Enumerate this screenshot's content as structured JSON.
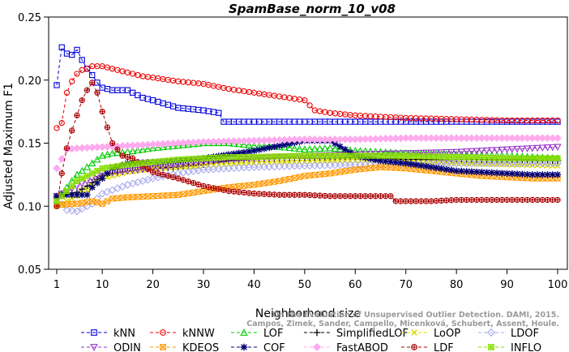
{
  "chart_data": {
    "type": "line",
    "title": "SpamBase_norm_10_v08",
    "xlabel": "Neighborhood size",
    "ylabel": "Adjusted Maximum F1",
    "xlim": [
      1,
      100
    ],
    "ylim": [
      0.05,
      0.25
    ],
    "x_ticks": [
      1,
      10,
      20,
      30,
      40,
      50,
      60,
      70,
      80,
      90,
      100
    ],
    "y_ticks": [
      0.05,
      0.1,
      0.15,
      0.2,
      0.25
    ],
    "grid": false,
    "legend_position": "bottom",
    "watermark": "Campos, Zimek, Sander, Campello, Micenková, Schubert, Assent, Houle. On the Evaluation of Unsupervised Outlier Detection. DAMI, 2015.",
    "series": [
      {
        "name": "kNN",
        "color": "#0000dd",
        "marker": "square",
        "points": [
          [
            1,
            0.196
          ],
          [
            2,
            0.226
          ],
          [
            3,
            0.221
          ],
          [
            4,
            0.22
          ],
          [
            5,
            0.224
          ],
          [
            6,
            0.216
          ],
          [
            7,
            0.209
          ],
          [
            8,
            0.204
          ],
          [
            9,
            0.198
          ],
          [
            10,
            0.194
          ],
          [
            12,
            0.192
          ],
          [
            15,
            0.192
          ],
          [
            18,
            0.186
          ],
          [
            20,
            0.184
          ],
          [
            25,
            0.178
          ],
          [
            30,
            0.176
          ],
          [
            33,
            0.174
          ],
          [
            34,
            0.167
          ],
          [
            40,
            0.167
          ],
          [
            45,
            0.167
          ],
          [
            50,
            0.167
          ],
          [
            55,
            0.167
          ],
          [
            60,
            0.167
          ],
          [
            70,
            0.167
          ],
          [
            80,
            0.167
          ],
          [
            90,
            0.167
          ],
          [
            100,
            0.167
          ]
        ]
      },
      {
        "name": "kNNW",
        "color": "#ee0000",
        "marker": "circle",
        "points": [
          [
            1,
            0.162
          ],
          [
            2,
            0.166
          ],
          [
            3,
            0.19
          ],
          [
            4,
            0.199
          ],
          [
            5,
            0.205
          ],
          [
            6,
            0.208
          ],
          [
            7,
            0.209
          ],
          [
            8,
            0.211
          ],
          [
            9,
            0.211
          ],
          [
            10,
            0.211
          ],
          [
            12,
            0.209
          ],
          [
            15,
            0.206
          ],
          [
            18,
            0.203
          ],
          [
            20,
            0.202
          ],
          [
            25,
            0.199
          ],
          [
            30,
            0.197
          ],
          [
            35,
            0.193
          ],
          [
            40,
            0.19
          ],
          [
            45,
            0.187
          ],
          [
            50,
            0.184
          ],
          [
            52,
            0.176
          ],
          [
            55,
            0.174
          ],
          [
            60,
            0.172
          ],
          [
            70,
            0.17
          ],
          [
            80,
            0.169
          ],
          [
            90,
            0.168
          ],
          [
            100,
            0.168
          ]
        ]
      },
      {
        "name": "LOF",
        "color": "#00cc00",
        "marker": "triangle",
        "points": [
          [
            1,
            0.105
          ],
          [
            5,
            0.125
          ],
          [
            10,
            0.14
          ],
          [
            12,
            0.142
          ],
          [
            15,
            0.143
          ],
          [
            20,
            0.146
          ],
          [
            25,
            0.148
          ],
          [
            30,
            0.15
          ],
          [
            35,
            0.15
          ],
          [
            40,
            0.148
          ],
          [
            45,
            0.147
          ],
          [
            50,
            0.145
          ],
          [
            55,
            0.146
          ],
          [
            60,
            0.144
          ],
          [
            70,
            0.142
          ],
          [
            80,
            0.141
          ],
          [
            90,
            0.14
          ],
          [
            100,
            0.138
          ]
        ]
      },
      {
        "name": "SimplifiedLOF",
        "color": "#000000",
        "marker": "plus",
        "points": [
          [
            1,
            0.107
          ],
          [
            3,
            0.11
          ],
          [
            5,
            0.111
          ],
          [
            7,
            0.116
          ],
          [
            10,
            0.124
          ],
          [
            15,
            0.128
          ],
          [
            20,
            0.13
          ],
          [
            25,
            0.131
          ],
          [
            30,
            0.133
          ],
          [
            35,
            0.136
          ],
          [
            40,
            0.137
          ],
          [
            45,
            0.138
          ],
          [
            50,
            0.138
          ],
          [
            55,
            0.138
          ],
          [
            60,
            0.139
          ],
          [
            70,
            0.137
          ],
          [
            80,
            0.137
          ],
          [
            90,
            0.137
          ],
          [
            100,
            0.136
          ]
        ]
      },
      {
        "name": "LoOP",
        "color": "#dddd00",
        "marker": "cross",
        "points": [
          [
            1,
            0.1
          ],
          [
            3,
            0.104
          ],
          [
            5,
            0.108
          ],
          [
            7,
            0.113
          ],
          [
            10,
            0.122
          ],
          [
            15,
            0.127
          ],
          [
            20,
            0.13
          ],
          [
            25,
            0.131
          ],
          [
            30,
            0.132
          ],
          [
            35,
            0.133
          ],
          [
            40,
            0.134
          ],
          [
            50,
            0.135
          ],
          [
            60,
            0.136
          ],
          [
            70,
            0.135
          ],
          [
            80,
            0.134
          ],
          [
            90,
            0.133
          ],
          [
            100,
            0.132
          ]
        ]
      },
      {
        "name": "LDOF",
        "color": "#aaaaee",
        "marker": "diamond",
        "points": [
          [
            1,
            0.106
          ],
          [
            3,
            0.097
          ],
          [
            5,
            0.096
          ],
          [
            8,
            0.102
          ],
          [
            10,
            0.11
          ],
          [
            15,
            0.117
          ],
          [
            20,
            0.122
          ],
          [
            25,
            0.126
          ],
          [
            30,
            0.129
          ],
          [
            35,
            0.13
          ],
          [
            40,
            0.131
          ],
          [
            50,
            0.132
          ],
          [
            60,
            0.133
          ],
          [
            70,
            0.133
          ],
          [
            80,
            0.134
          ],
          [
            90,
            0.134
          ],
          [
            100,
            0.134
          ]
        ]
      },
      {
        "name": "ODIN",
        "color": "#9933cc",
        "marker": "triangle-down",
        "points": [
          [
            1,
            0.108
          ],
          [
            5,
            0.116
          ],
          [
            10,
            0.126
          ],
          [
            15,
            0.128
          ],
          [
            20,
            0.13
          ],
          [
            25,
            0.133
          ],
          [
            30,
            0.135
          ],
          [
            35,
            0.137
          ],
          [
            40,
            0.138
          ],
          [
            45,
            0.139
          ],
          [
            50,
            0.14
          ],
          [
            60,
            0.141
          ],
          [
            70,
            0.142
          ],
          [
            80,
            0.143
          ],
          [
            90,
            0.145
          ],
          [
            100,
            0.147
          ]
        ]
      },
      {
        "name": "KDEOS",
        "color": "#ff9900",
        "marker": "square-x",
        "points": [
          [
            1,
            0.101
          ],
          [
            5,
            0.102
          ],
          [
            8,
            0.104
          ],
          [
            10,
            0.102
          ],
          [
            12,
            0.106
          ],
          [
            15,
            0.107
          ],
          [
            20,
            0.108
          ],
          [
            25,
            0.109
          ],
          [
            30,
            0.112
          ],
          [
            35,
            0.115
          ],
          [
            40,
            0.117
          ],
          [
            45,
            0.12
          ],
          [
            50,
            0.124
          ],
          [
            55,
            0.126
          ],
          [
            60,
            0.129
          ],
          [
            65,
            0.131
          ],
          [
            70,
            0.13
          ],
          [
            75,
            0.128
          ],
          [
            80,
            0.126
          ],
          [
            85,
            0.124
          ],
          [
            90,
            0.123
          ],
          [
            95,
            0.122
          ],
          [
            100,
            0.122
          ]
        ]
      },
      {
        "name": "COF",
        "color": "#000077",
        "marker": "star",
        "points": [
          [
            1,
            0.108
          ],
          [
            3,
            0.109
          ],
          [
            5,
            0.109
          ],
          [
            7,
            0.109
          ],
          [
            8,
            0.115
          ],
          [
            10,
            0.122
          ],
          [
            12,
            0.13
          ],
          [
            15,
            0.134
          ],
          [
            20,
            0.135
          ],
          [
            25,
            0.136
          ],
          [
            30,
            0.138
          ],
          [
            35,
            0.141
          ],
          [
            40,
            0.144
          ],
          [
            45,
            0.148
          ],
          [
            50,
            0.152
          ],
          [
            55,
            0.152
          ],
          [
            58,
            0.145
          ],
          [
            60,
            0.14
          ],
          [
            65,
            0.136
          ],
          [
            70,
            0.134
          ],
          [
            75,
            0.131
          ],
          [
            80,
            0.128
          ],
          [
            85,
            0.127
          ],
          [
            90,
            0.126
          ],
          [
            95,
            0.125
          ],
          [
            100,
            0.125
          ]
        ]
      },
      {
        "name": "FastABOD",
        "color": "#ffaaee",
        "marker": "diamond-filled",
        "points": [
          [
            1,
            0.13
          ],
          [
            3,
            0.145
          ],
          [
            5,
            0.146
          ],
          [
            10,
            0.147
          ],
          [
            15,
            0.148
          ],
          [
            20,
            0.149
          ],
          [
            25,
            0.15
          ],
          [
            30,
            0.151
          ],
          [
            40,
            0.152
          ],
          [
            50,
            0.153
          ],
          [
            60,
            0.153
          ],
          [
            70,
            0.154
          ],
          [
            80,
            0.154
          ],
          [
            90,
            0.154
          ],
          [
            100,
            0.154
          ]
        ]
      },
      {
        "name": "LDF",
        "color": "#aa0000",
        "marker": "circle-plus",
        "points": [
          [
            1,
            0.1
          ],
          [
            2,
            0.126
          ],
          [
            3,
            0.146
          ],
          [
            4,
            0.16
          ],
          [
            5,
            0.172
          ],
          [
            6,
            0.184
          ],
          [
            7,
            0.192
          ],
          [
            8,
            0.198
          ],
          [
            9,
            0.19
          ],
          [
            10,
            0.175
          ],
          [
            12,
            0.15
          ],
          [
            14,
            0.14
          ],
          [
            16,
            0.138
          ],
          [
            18,
            0.132
          ],
          [
            20,
            0.127
          ],
          [
            25,
            0.122
          ],
          [
            30,
            0.116
          ],
          [
            35,
            0.112
          ],
          [
            40,
            0.11
          ],
          [
            45,
            0.109
          ],
          [
            50,
            0.109
          ],
          [
            55,
            0.108
          ],
          [
            60,
            0.108
          ],
          [
            65,
            0.108
          ],
          [
            67,
            0.108
          ],
          [
            68,
            0.104
          ],
          [
            70,
            0.104
          ],
          [
            75,
            0.104
          ],
          [
            80,
            0.105
          ],
          [
            85,
            0.105
          ],
          [
            90,
            0.105
          ],
          [
            95,
            0.105
          ],
          [
            100,
            0.105
          ]
        ]
      },
      {
        "name": "INFLO",
        "color": "#88dd00",
        "marker": "square-star",
        "points": [
          [
            1,
            0.104
          ],
          [
            5,
            0.12
          ],
          [
            10,
            0.13
          ],
          [
            15,
            0.133
          ],
          [
            20,
            0.135
          ],
          [
            25,
            0.137
          ],
          [
            30,
            0.138
          ],
          [
            35,
            0.139
          ],
          [
            40,
            0.139
          ],
          [
            50,
            0.14
          ],
          [
            60,
            0.14
          ],
          [
            70,
            0.14
          ],
          [
            80,
            0.139
          ],
          [
            90,
            0.138
          ],
          [
            100,
            0.138
          ]
        ]
      }
    ]
  }
}
